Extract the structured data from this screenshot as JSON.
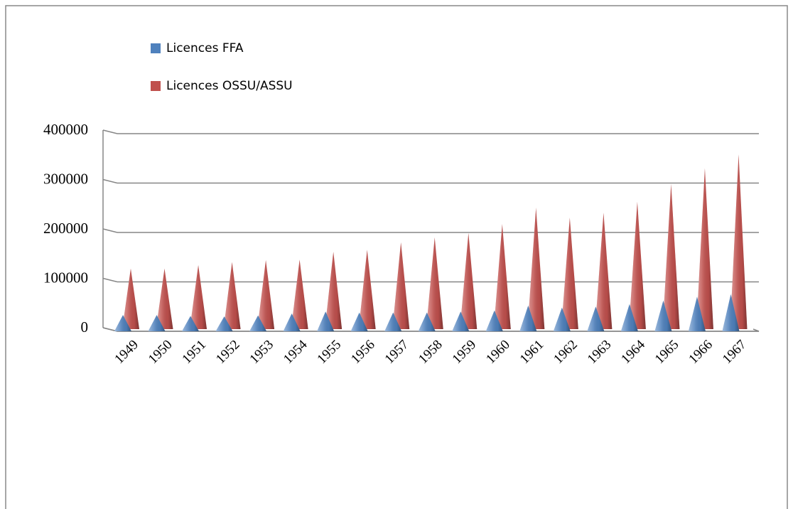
{
  "chart_data": {
    "type": "cone",
    "categories": [
      "1949",
      "1950",
      "1951",
      "1952",
      "1953",
      "1954",
      "1955",
      "1956",
      "1957",
      "1958",
      "1959",
      "1960",
      "1961",
      "1962",
      "1963",
      "1964",
      "1965",
      "1966",
      "1967"
    ],
    "series": [
      {
        "name": "Licences FFA",
        "color": "#4f81bd",
        "values": [
          33000,
          33000,
          31000,
          30000,
          32000,
          36000,
          40000,
          38000,
          38000,
          38000,
          40000,
          42000,
          52000,
          48000,
          50000,
          55000,
          62000,
          70000,
          75000
        ]
      },
      {
        "name": "Licences OSSU/ASSU",
        "color": "#c0504d",
        "values": [
          127000,
          127000,
          134000,
          140000,
          144000,
          145000,
          161000,
          165000,
          180000,
          190000,
          199000,
          217000,
          250000,
          230000,
          240000,
          262000,
          298000,
          330000,
          358000
        ]
      }
    ],
    "ylim": [
      0,
      400000
    ],
    "yticks": [
      0,
      100000,
      200000,
      300000,
      400000
    ],
    "grid": true,
    "legend": "top-left"
  }
}
